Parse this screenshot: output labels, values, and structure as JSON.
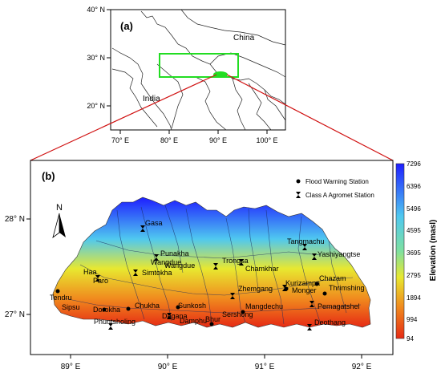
{
  "inset": {
    "label": "(a)",
    "y_ticks": [
      "40° N",
      "30° N",
      "20° N"
    ],
    "x_ticks": [
      "70° E",
      "80° E",
      "90° E",
      "100° E"
    ],
    "countries": [
      "China",
      "India"
    ],
    "highlight_color": "#22dd22"
  },
  "main": {
    "label": "(b)",
    "y_ticks": [
      "28° N",
      "27° N"
    ],
    "x_ticks": [
      "89° E",
      "90° E",
      "91° E",
      "92° E"
    ],
    "north_label": "N",
    "legend": {
      "flood": "Flood Warning Station",
      "agromet": "Class A Agromet Station"
    },
    "colorbar": {
      "title": "Elevation (masl)",
      "ticks": [
        "7296",
        "6396",
        "5496",
        "4595",
        "3695",
        "2795",
        "1894",
        "994",
        "94"
      ],
      "colors": [
        "#1e1eff",
        "#4fc8f0",
        "#e8e830",
        "#f08a1e",
        "#e62a14"
      ]
    },
    "places": [
      {
        "name": "Gasa"
      },
      {
        "name": "Punakha"
      },
      {
        "name": "Wangdue"
      },
      {
        "name": "Wangdue"
      },
      {
        "name": "Simtokha"
      },
      {
        "name": "Haa"
      },
      {
        "name": "Paro"
      },
      {
        "name": "Tendru"
      },
      {
        "name": "Sipsu"
      },
      {
        "name": "Dorokha"
      },
      {
        "name": "Chukha"
      },
      {
        "name": "Phuntsholing"
      },
      {
        "name": "Dagana"
      },
      {
        "name": "Sunkosh"
      },
      {
        "name": "Damphu"
      },
      {
        "name": "Bhur"
      },
      {
        "name": "Sershong"
      },
      {
        "name": "Mangdechu"
      },
      {
        "name": "Zhemgang"
      },
      {
        "name": "Trongsa"
      },
      {
        "name": "Chamkhar"
      },
      {
        "name": "Kurizampa"
      },
      {
        "name": "Monger"
      },
      {
        "name": "Chazam"
      },
      {
        "name": "Thrimshing"
      },
      {
        "name": "Pemagatshel"
      },
      {
        "name": "Deothang"
      },
      {
        "name": "Tangmachu"
      },
      {
        "name": "Yashiyangtse"
      }
    ]
  }
}
